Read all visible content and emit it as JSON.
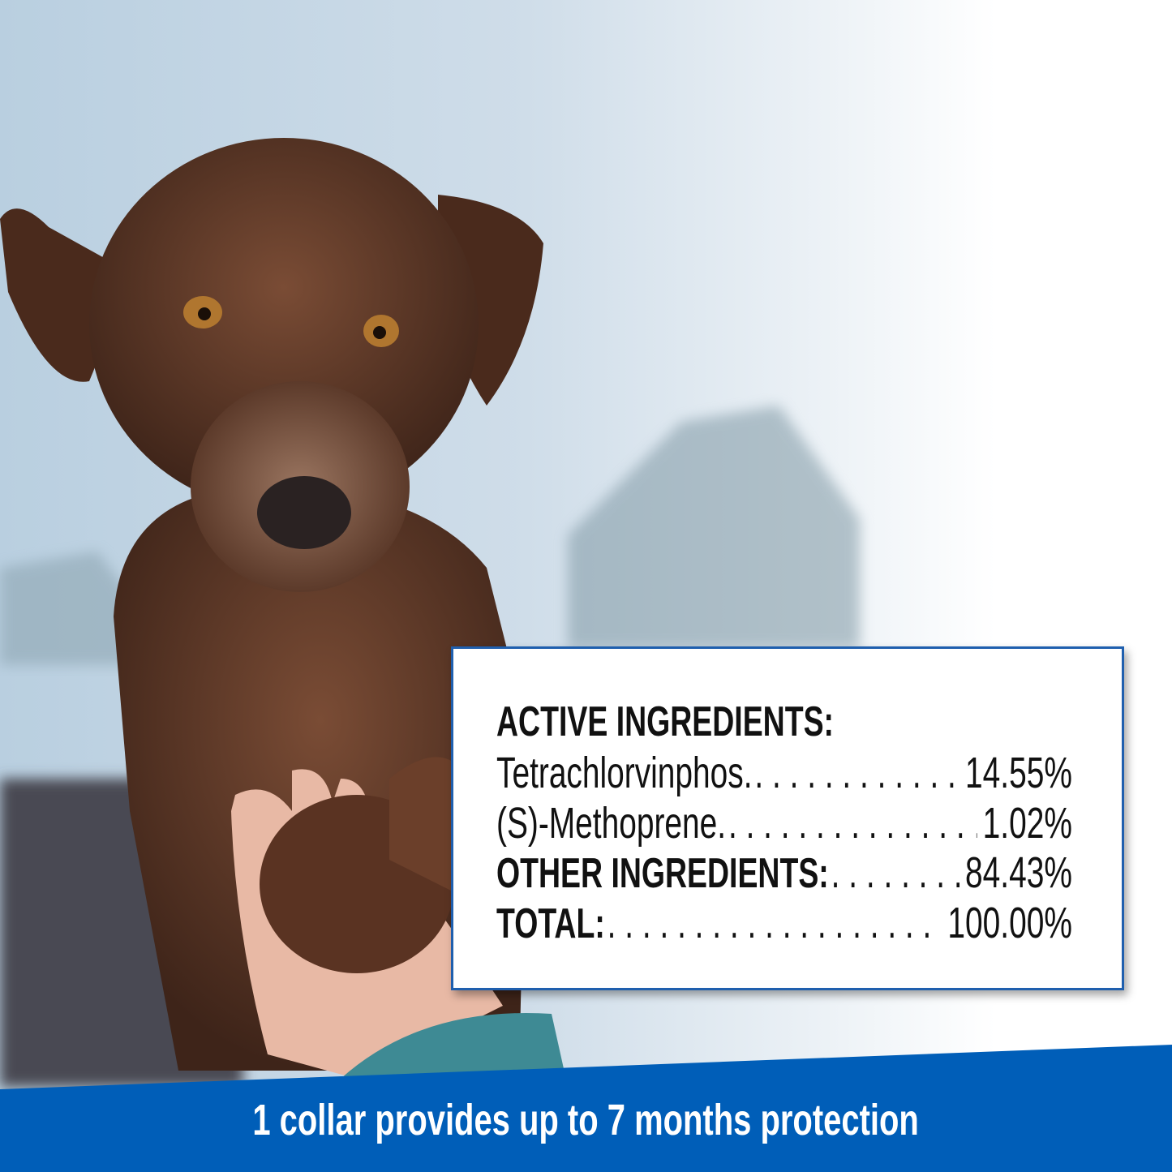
{
  "colors": {
    "banner": "#005eb8",
    "box_border": "#1f5fae",
    "text": "#111111"
  },
  "photo": {
    "subject": "dog-giving-paw-image"
  },
  "ingredients": {
    "heading": "ACTIVE INGREDIENTS:",
    "rows": [
      {
        "label": "Tetrachlorvinphos.",
        "value": "14.55%"
      },
      {
        "label": "(S)-Methoprene.",
        "value": "1.02%"
      },
      {
        "label": "OTHER INGREDIENTS:",
        "value": "84.43%"
      },
      {
        "label": "TOTAL:",
        "value": "100.00%"
      }
    ]
  },
  "banner": {
    "text": "1 collar provides up to 7 months protection"
  }
}
